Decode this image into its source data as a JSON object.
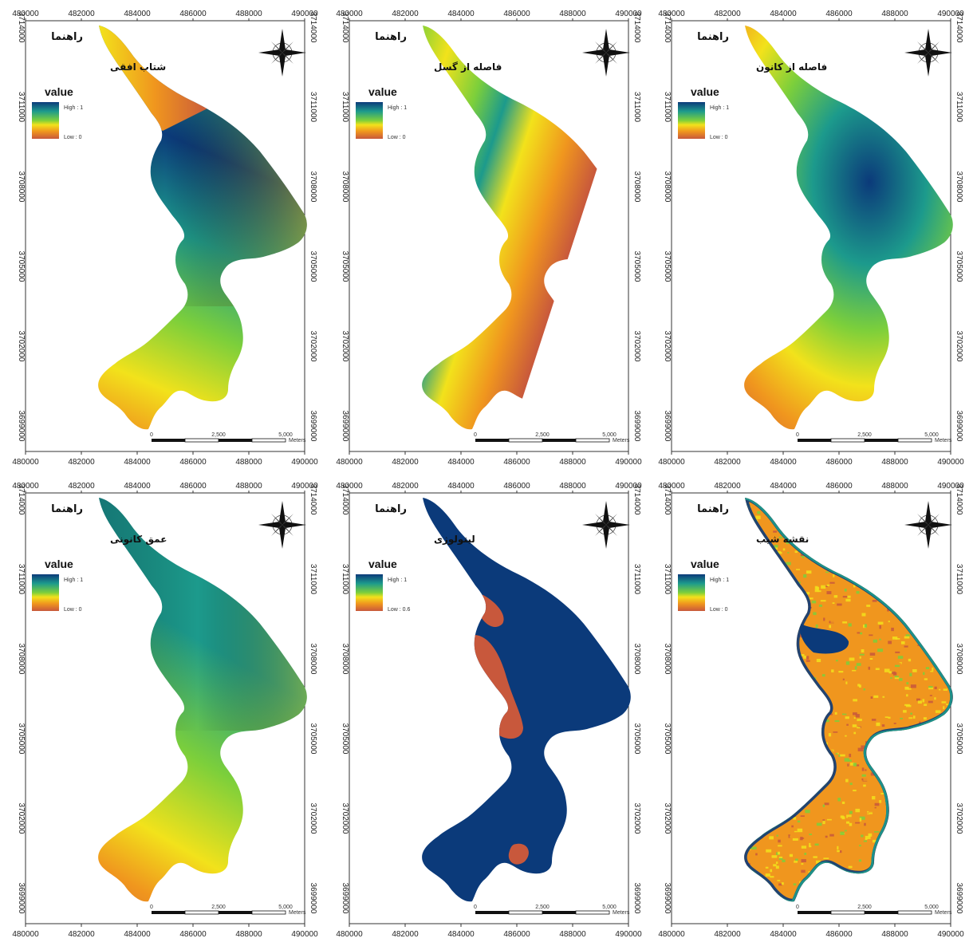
{
  "colors": {
    "ramp_high": "#0b3a7a",
    "ramp_mid1": "#1c9a8c",
    "ramp_mid2": "#7ccf3b",
    "ramp_mid3": "#f2e21b",
    "ramp_mid4": "#f0961e",
    "ramp_low": "#c8583c",
    "neatline": "#333333"
  },
  "common": {
    "x_ticks": [
      "480000",
      "482000",
      "484000",
      "486000",
      "488000",
      "490000"
    ],
    "y_ticks": [
      "3714000",
      "3711000",
      "3708000",
      "3705000",
      "3702000",
      "3699000"
    ],
    "legend_heading": "راهنما",
    "value_label": "value",
    "scale_labels": [
      "0",
      "2,500",
      "5,000"
    ],
    "scale_unit": "Meters",
    "north_icon": "compass-rose-icon"
  },
  "panels": [
    {
      "id": "p1",
      "subtitle": "شتاب افقی",
      "high_label": "High : 1",
      "low_label": "Low : 0",
      "style": "gradient-a"
    },
    {
      "id": "p2",
      "subtitle": "فاصله از گسل",
      "high_label": "High : 1",
      "low_label": "Low : 0",
      "style": "stepped-b"
    },
    {
      "id": "p3",
      "subtitle": "فاصله از کانون",
      "high_label": "High : 1",
      "low_label": "Low : 0",
      "style": "gradient-c"
    },
    {
      "id": "p4",
      "subtitle": "عمق کانونی",
      "high_label": "High : 1",
      "low_label": "Low : 0",
      "style": "gradient-d"
    },
    {
      "id": "p5",
      "subtitle": "لیتولوژی",
      "high_label": "High : 1",
      "low_label": "Low : 0.6",
      "style": "lithology"
    },
    {
      "id": "p6",
      "subtitle": "نقشه شیب",
      "high_label": "High : 1",
      "low_label": "Low : 0",
      "style": "noisy"
    }
  ]
}
